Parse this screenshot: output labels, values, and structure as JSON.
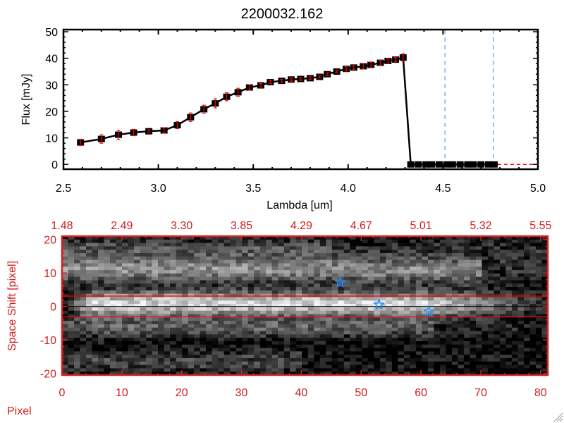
{
  "colors": {
    "axis_top": "#000000",
    "axis_bottom": "#d02020",
    "error_bar": "#ff0000",
    "marker_line": "#1e90ff",
    "zero_line": "#ff0000",
    "star": "#1e90ff"
  },
  "chart_data": [
    {
      "type": "line",
      "title": "2200032.162",
      "xlabel": "Lambda [um]",
      "ylabel": "Flux [mJy]",
      "xlim": [
        2.5,
        5.0
      ],
      "ylim": [
        -1.8,
        50.8
      ],
      "xticks": [
        "2.5",
        "3.0",
        "3.5",
        "4.0",
        "4.5",
        "5.0"
      ],
      "xtick_values": [
        2.5,
        3.0,
        3.5,
        4.0,
        4.5,
        5.0
      ],
      "yticks": [
        "0",
        "10",
        "20",
        "30",
        "40",
        "50"
      ],
      "ytick_values": [
        0,
        10,
        20,
        30,
        40,
        50
      ],
      "grid": false,
      "marker": "square",
      "series": [
        {
          "x": [
            2.59,
            2.7,
            2.79,
            2.87,
            2.95,
            3.03,
            3.1,
            3.17,
            3.24,
            3.3,
            3.36,
            3.42,
            3.48,
            3.54,
            3.59,
            3.65,
            3.7,
            3.75,
            3.8,
            3.85,
            3.89,
            3.94,
            3.99,
            4.03,
            4.08,
            4.12,
            4.17,
            4.21,
            4.25,
            4.29,
            4.33,
            4.37,
            4.41,
            4.44,
            4.48,
            4.52,
            4.55,
            4.59,
            4.63,
            4.66,
            4.7,
            4.74,
            4.77
          ],
          "y": [
            8.3,
            9.6,
            11.2,
            12.0,
            12.5,
            12.8,
            14.8,
            17.8,
            20.8,
            23.0,
            25.5,
            27.2,
            29.0,
            29.8,
            31.0,
            31.5,
            32.0,
            32.2,
            32.5,
            33.0,
            34.0,
            35.0,
            36.0,
            36.5,
            37.0,
            37.5,
            38.3,
            39.0,
            39.5,
            40.3,
            0,
            0,
            0,
            0,
            0,
            0,
            0,
            0,
            0,
            0,
            0,
            0,
            0
          ],
          "err": [
            1.2,
            1.6,
            1.7,
            1.2,
            0.5,
            1.0,
            1.3,
            1.6,
            1.5,
            1.7,
            1.5,
            1.5,
            1.0,
            0.7,
            0.6,
            0.5,
            0.6,
            0.5,
            0.5,
            0.4,
            0.5,
            0.4,
            0.8,
            0.8,
            1.0,
            1.1,
            0.9,
            0.9,
            0.8,
            1.4,
            0,
            0,
            0,
            0,
            0,
            0,
            0,
            0,
            0,
            0,
            0,
            0,
            0
          ]
        }
      ],
      "vertical_dashed_lines_x": [
        4.51,
        4.765
      ],
      "zero_dashed_line_xrange": [
        4.32,
        5.0
      ]
    },
    {
      "type": "heatmap",
      "xlabel": "Pixel",
      "ylabel": "Space Shift [pixel]",
      "xlim": [
        0,
        81.2
      ],
      "ylim": [
        -20.5,
        21
      ],
      "xticks": [
        "0",
        "10",
        "20",
        "30",
        "40",
        "50",
        "60",
        "70",
        "80"
      ],
      "xtick_values": [
        0,
        10,
        20,
        30,
        40,
        50,
        60,
        70,
        80
      ],
      "top_xticks": [
        "1.48",
        "2.49",
        "3.30",
        "3.85",
        "4.29",
        "4.67",
        "5.01",
        "5.32",
        "5.55"
      ],
      "yticks": [
        "20",
        "10",
        "0",
        "-10",
        "-20"
      ],
      "ytick_values": [
        20,
        10,
        0,
        -10,
        -20
      ],
      "colormap": "grayscale",
      "horizontal_lines": [
        {
          "y": 3.1,
          "color": "red"
        },
        {
          "y": 0,
          "color": "black"
        },
        {
          "y": -3.1,
          "color": "red"
        }
      ],
      "stars": [
        {
          "x": 46.5,
          "y": 7.2
        },
        {
          "x": 53.0,
          "y": 0.5
        },
        {
          "x": 61.3,
          "y": -1.5
        }
      ]
    }
  ]
}
